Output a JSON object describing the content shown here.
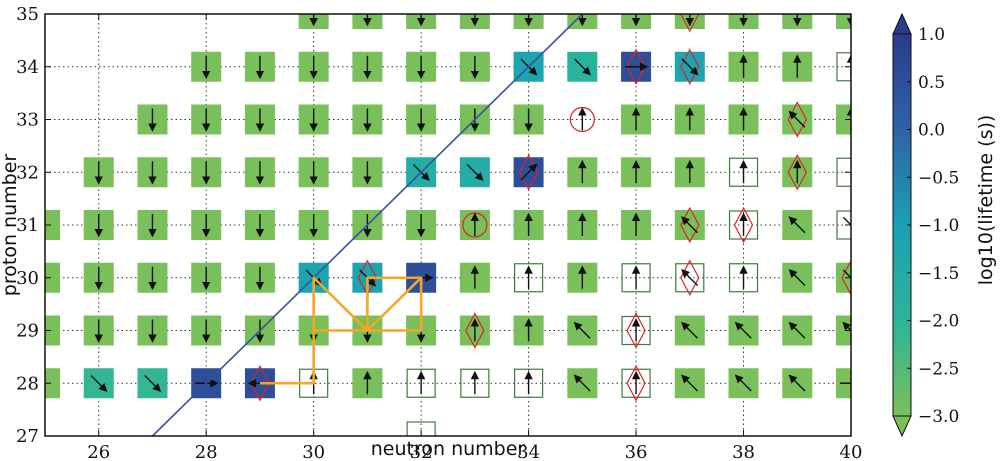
{
  "chart_data": {
    "type": "heatmap",
    "title": "",
    "xlabel": "neutron number",
    "ylabel": "proton number",
    "xlim": [
      25,
      40
    ],
    "ylim": [
      27,
      35
    ],
    "x_ticks": [
      26,
      28,
      30,
      32,
      34,
      36,
      38,
      40
    ],
    "x_tick_labels": [
      "26",
      "28",
      "30",
      "32",
      "34",
      "36",
      "38",
      "40"
    ],
    "y_ticks": [
      27,
      28,
      29,
      30,
      31,
      32,
      33,
      34,
      35
    ],
    "y_tick_labels": [
      "27",
      "28",
      "29",
      "30",
      "31",
      "32",
      "33",
      "34",
      "35"
    ],
    "grid": true,
    "colorbar": {
      "label": "log10(lifetime (s))",
      "range": [
        -3.0,
        1.0
      ],
      "ticks": [
        1.0,
        0.5,
        0.0,
        -0.5,
        -1.0,
        -1.5,
        -2.0,
        -2.5,
        -3.0
      ],
      "tick_labels": [
        "1.0",
        "0.5",
        "0.0",
        "−0.5",
        "−1.0",
        "−1.5",
        "−2.0",
        "−2.5",
        "−3.0"
      ],
      "colors": [
        "#7ac05a",
        "#2bb59a",
        "#1aa0b4",
        "#2e62a8",
        "#2c3b8c"
      ]
    },
    "diagonal_line": {
      "from": [
        27,
        27
      ],
      "to": [
        35,
        35
      ],
      "color": "#3653a2"
    },
    "cells": [
      {
        "n": 25,
        "z": 28,
        "log_lifetime": -3,
        "dir": "none"
      },
      {
        "n": 26,
        "z": 28,
        "log_lifetime": -2.1,
        "dir": "se"
      },
      {
        "n": 27,
        "z": 28,
        "log_lifetime": -2.1,
        "dir": "se"
      },
      {
        "n": 28,
        "z": 28,
        "log_lifetime": 0.5,
        "dir": "e"
      },
      {
        "n": 29,
        "z": 28,
        "log_lifetime": 0.5,
        "dir": "w",
        "marker": "diamond"
      },
      {
        "n": 30,
        "z": 28,
        "log_lifetime": null,
        "dir": "n",
        "marker": "square"
      },
      {
        "n": 31,
        "z": 28,
        "log_lifetime": -3,
        "dir": "n"
      },
      {
        "n": 32,
        "z": 28,
        "log_lifetime": null,
        "dir": "n",
        "marker": "square"
      },
      {
        "n": 33,
        "z": 28,
        "log_lifetime": null,
        "dir": "n",
        "marker": "square"
      },
      {
        "n": 34,
        "z": 28,
        "log_lifetime": null,
        "dir": "n",
        "marker": "square"
      },
      {
        "n": 35,
        "z": 28,
        "log_lifetime": -3,
        "dir": "nw"
      },
      {
        "n": 36,
        "z": 28,
        "log_lifetime": null,
        "dir": "n",
        "marker": "square-diamond"
      },
      {
        "n": 37,
        "z": 28,
        "log_lifetime": -3,
        "dir": "nw"
      },
      {
        "n": 38,
        "z": 28,
        "log_lifetime": -3,
        "dir": "nw"
      },
      {
        "n": 39,
        "z": 28,
        "log_lifetime": -3,
        "dir": "nw"
      },
      {
        "n": 40,
        "z": 28,
        "log_lifetime": -3,
        "dir": "e"
      },
      {
        "n": 25,
        "z": 29,
        "log_lifetime": -3,
        "dir": "none"
      },
      {
        "n": 26,
        "z": 29,
        "log_lifetime": -3,
        "dir": "s"
      },
      {
        "n": 27,
        "z": 29,
        "log_lifetime": -3,
        "dir": "s"
      },
      {
        "n": 28,
        "z": 29,
        "log_lifetime": -3,
        "dir": "s"
      },
      {
        "n": 29,
        "z": 29,
        "log_lifetime": -3,
        "dir": "s"
      },
      {
        "n": 30,
        "z": 29,
        "log_lifetime": -3,
        "dir": "s"
      },
      {
        "n": 31,
        "z": 29,
        "log_lifetime": -3,
        "dir": "s"
      },
      {
        "n": 32,
        "z": 29,
        "log_lifetime": -3,
        "dir": "s"
      },
      {
        "n": 33,
        "z": 29,
        "log_lifetime": -3,
        "dir": "n",
        "marker": "diamond"
      },
      {
        "n": 34,
        "z": 29,
        "log_lifetime": -3,
        "dir": "n"
      },
      {
        "n": 35,
        "z": 29,
        "log_lifetime": -3,
        "dir": "nw"
      },
      {
        "n": 36,
        "z": 29,
        "log_lifetime": null,
        "dir": "n",
        "marker": "square-diamond"
      },
      {
        "n": 37,
        "z": 29,
        "log_lifetime": -3,
        "dir": "nw"
      },
      {
        "n": 38,
        "z": 29,
        "log_lifetime": -3,
        "dir": "nw"
      },
      {
        "n": 39,
        "z": 29,
        "log_lifetime": -3,
        "dir": "nw"
      },
      {
        "n": 40,
        "z": 29,
        "log_lifetime": -3,
        "dir": "nw"
      },
      {
        "n": 25,
        "z": 30,
        "log_lifetime": -3,
        "dir": "none"
      },
      {
        "n": 26,
        "z": 30,
        "log_lifetime": -3,
        "dir": "s"
      },
      {
        "n": 27,
        "z": 30,
        "log_lifetime": -3,
        "dir": "s"
      },
      {
        "n": 28,
        "z": 30,
        "log_lifetime": -3,
        "dir": "s"
      },
      {
        "n": 29,
        "z": 30,
        "log_lifetime": -3,
        "dir": "s"
      },
      {
        "n": 30,
        "z": 30,
        "log_lifetime": -1.2,
        "dir": "se"
      },
      {
        "n": 31,
        "z": 30,
        "log_lifetime": -1.2,
        "dir": "se",
        "marker": "diamond"
      },
      {
        "n": 32,
        "z": 30,
        "log_lifetime": 0.5,
        "dir": "e"
      },
      {
        "n": 33,
        "z": 30,
        "log_lifetime": -3,
        "dir": "n"
      },
      {
        "n": 34,
        "z": 30,
        "log_lifetime": null,
        "dir": "n",
        "marker": "square"
      },
      {
        "n": 35,
        "z": 30,
        "log_lifetime": -3,
        "dir": "n"
      },
      {
        "n": 36,
        "z": 30,
        "log_lifetime": null,
        "dir": "n",
        "marker": "square"
      },
      {
        "n": 37,
        "z": 30,
        "log_lifetime": null,
        "dir": "nw",
        "marker": "square-diamond"
      },
      {
        "n": 38,
        "z": 30,
        "log_lifetime": null,
        "dir": "n",
        "marker": "square"
      },
      {
        "n": 39,
        "z": 30,
        "log_lifetime": -3,
        "dir": "nw"
      },
      {
        "n": 40,
        "z": 30,
        "log_lifetime": -3,
        "dir": "se",
        "marker": "diamond"
      },
      {
        "n": 25,
        "z": 31,
        "log_lifetime": -3,
        "dir": "none"
      },
      {
        "n": 26,
        "z": 31,
        "log_lifetime": -3,
        "dir": "s"
      },
      {
        "n": 27,
        "z": 31,
        "log_lifetime": -3,
        "dir": "s"
      },
      {
        "n": 28,
        "z": 31,
        "log_lifetime": -3,
        "dir": "s"
      },
      {
        "n": 29,
        "z": 31,
        "log_lifetime": -3,
        "dir": "s"
      },
      {
        "n": 30,
        "z": 31,
        "log_lifetime": -3,
        "dir": "s"
      },
      {
        "n": 31,
        "z": 31,
        "log_lifetime": -3,
        "dir": "s"
      },
      {
        "n": 32,
        "z": 31,
        "log_lifetime": -3,
        "dir": "s"
      },
      {
        "n": 33,
        "z": 31,
        "log_lifetime": -3,
        "dir": "n",
        "marker": "circle"
      },
      {
        "n": 34,
        "z": 31,
        "log_lifetime": -3,
        "dir": "n"
      },
      {
        "n": 35,
        "z": 31,
        "log_lifetime": -3,
        "dir": "n"
      },
      {
        "n": 36,
        "z": 31,
        "log_lifetime": -3,
        "dir": "n"
      },
      {
        "n": 37,
        "z": 31,
        "log_lifetime": -3,
        "dir": "nw",
        "marker": "diamond"
      },
      {
        "n": 38,
        "z": 31,
        "log_lifetime": null,
        "dir": "n",
        "marker": "square-diamond"
      },
      {
        "n": 39,
        "z": 31,
        "log_lifetime": -3,
        "dir": "nw"
      },
      {
        "n": 40,
        "z": 31,
        "log_lifetime": null,
        "dir": "se",
        "marker": "square"
      },
      {
        "n": 26,
        "z": 32,
        "log_lifetime": -3,
        "dir": "s"
      },
      {
        "n": 27,
        "z": 32,
        "log_lifetime": -3,
        "dir": "s"
      },
      {
        "n": 28,
        "z": 32,
        "log_lifetime": -3,
        "dir": "s"
      },
      {
        "n": 29,
        "z": 32,
        "log_lifetime": -3,
        "dir": "s"
      },
      {
        "n": 30,
        "z": 32,
        "log_lifetime": -3,
        "dir": "s"
      },
      {
        "n": 31,
        "z": 32,
        "log_lifetime": -3,
        "dir": "s"
      },
      {
        "n": 32,
        "z": 32,
        "log_lifetime": -1.6,
        "dir": "se"
      },
      {
        "n": 33,
        "z": 32,
        "log_lifetime": -1.6,
        "dir": "se"
      },
      {
        "n": 34,
        "z": 32,
        "log_lifetime": 0.5,
        "dir": "ne",
        "marker": "diamond"
      },
      {
        "n": 35,
        "z": 32,
        "log_lifetime": -3,
        "dir": "n"
      },
      {
        "n": 36,
        "z": 32,
        "log_lifetime": -3,
        "dir": "n"
      },
      {
        "n": 37,
        "z": 32,
        "log_lifetime": -3,
        "dir": "n"
      },
      {
        "n": 38,
        "z": 32,
        "log_lifetime": null,
        "dir": "n",
        "marker": "square"
      },
      {
        "n": 39,
        "z": 32,
        "log_lifetime": -3,
        "dir": "n",
        "marker": "diamond"
      },
      {
        "n": 40,
        "z": 32,
        "log_lifetime": null,
        "dir": "none",
        "marker": "square"
      },
      {
        "n": 27,
        "z": 33,
        "log_lifetime": -3,
        "dir": "s"
      },
      {
        "n": 28,
        "z": 33,
        "log_lifetime": -3,
        "dir": "s"
      },
      {
        "n": 29,
        "z": 33,
        "log_lifetime": -3,
        "dir": "s"
      },
      {
        "n": 30,
        "z": 33,
        "log_lifetime": -3,
        "dir": "s"
      },
      {
        "n": 31,
        "z": 33,
        "log_lifetime": -3,
        "dir": "s"
      },
      {
        "n": 32,
        "z": 33,
        "log_lifetime": -3,
        "dir": "s"
      },
      {
        "n": 33,
        "z": 33,
        "log_lifetime": -3,
        "dir": "s"
      },
      {
        "n": 34,
        "z": 33,
        "log_lifetime": -3,
        "dir": "s"
      },
      {
        "n": 35,
        "z": 33,
        "log_lifetime": null,
        "dir": "n",
        "marker": "circle"
      },
      {
        "n": 36,
        "z": 33,
        "log_lifetime": -3,
        "dir": "n"
      },
      {
        "n": 37,
        "z": 33,
        "log_lifetime": -3,
        "dir": "n"
      },
      {
        "n": 38,
        "z": 33,
        "log_lifetime": -3,
        "dir": "n"
      },
      {
        "n": 39,
        "z": 33,
        "log_lifetime": -3,
        "dir": "nw",
        "marker": "diamond"
      },
      {
        "n": 40,
        "z": 33,
        "log_lifetime": -3,
        "dir": "n"
      },
      {
        "n": 28,
        "z": 34,
        "log_lifetime": -3,
        "dir": "s"
      },
      {
        "n": 29,
        "z": 34,
        "log_lifetime": -3,
        "dir": "s"
      },
      {
        "n": 30,
        "z": 34,
        "log_lifetime": -3,
        "dir": "s"
      },
      {
        "n": 31,
        "z": 34,
        "log_lifetime": -3,
        "dir": "s"
      },
      {
        "n": 32,
        "z": 34,
        "log_lifetime": -3,
        "dir": "s"
      },
      {
        "n": 33,
        "z": 34,
        "log_lifetime": -3,
        "dir": "s"
      },
      {
        "n": 34,
        "z": 34,
        "log_lifetime": -1.2,
        "dir": "se"
      },
      {
        "n": 35,
        "z": 34,
        "log_lifetime": -1.9,
        "dir": "se"
      },
      {
        "n": 36,
        "z": 34,
        "log_lifetime": 0.5,
        "dir": "e",
        "marker": "diamond"
      },
      {
        "n": 37,
        "z": 34,
        "log_lifetime": -1.2,
        "dir": "se",
        "marker": "diamond"
      },
      {
        "n": 38,
        "z": 34,
        "log_lifetime": -3,
        "dir": "n"
      },
      {
        "n": 39,
        "z": 34,
        "log_lifetime": -3,
        "dir": "n"
      },
      {
        "n": 40,
        "z": 34,
        "log_lifetime": null,
        "dir": "n",
        "marker": "square"
      },
      {
        "n": 30,
        "z": 35,
        "log_lifetime": -3,
        "dir": "s"
      },
      {
        "n": 31,
        "z": 35,
        "log_lifetime": -3,
        "dir": "s"
      },
      {
        "n": 32,
        "z": 35,
        "log_lifetime": -3,
        "dir": "s"
      },
      {
        "n": 33,
        "z": 35,
        "log_lifetime": -3,
        "dir": "s"
      },
      {
        "n": 34,
        "z": 35,
        "log_lifetime": -3,
        "dir": "s"
      },
      {
        "n": 35,
        "z": 35,
        "log_lifetime": -3,
        "dir": "s"
      },
      {
        "n": 36,
        "z": 35,
        "log_lifetime": -3,
        "dir": "s"
      },
      {
        "n": 37,
        "z": 35,
        "log_lifetime": -3,
        "dir": "s",
        "marker": "diamond"
      },
      {
        "n": 38,
        "z": 35,
        "log_lifetime": -3,
        "dir": "s"
      },
      {
        "n": 39,
        "z": 35,
        "log_lifetime": -3,
        "dir": "s"
      },
      {
        "n": 40,
        "z": 35,
        "log_lifetime": -3,
        "dir": "s"
      },
      {
        "n": 32,
        "z": 27,
        "log_lifetime": null,
        "dir": "none",
        "marker": "square"
      }
    ],
    "path": {
      "color": "#f5a623",
      "points": [
        [
          29,
          28
        ],
        [
          30,
          28
        ],
        [
          30,
          29
        ],
        [
          30,
          30
        ],
        [
          31,
          29
        ],
        [
          32,
          30
        ],
        [
          31,
          30
        ],
        [
          31,
          29
        ],
        [
          30,
          29
        ],
        [
          32,
          29
        ],
        [
          32,
          30
        ]
      ]
    }
  }
}
